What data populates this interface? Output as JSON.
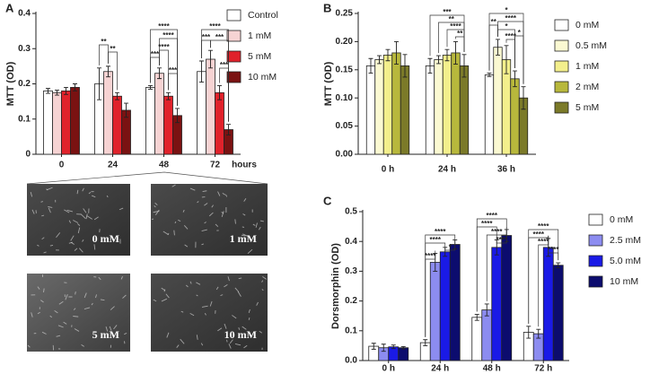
{
  "chart_data": [
    {
      "type": "bar",
      "panel": "A",
      "ylabel": "MTT (OD)",
      "xlabel": "hours",
      "categories": [
        "0",
        "24",
        "48",
        "72"
      ],
      "series": [
        {
          "name": "Control",
          "color": "#ffffff",
          "values": [
            0.18,
            0.2,
            0.19,
            0.235
          ],
          "errors": [
            0.007,
            0.045,
            0.005,
            0.03
          ]
        },
        {
          "name": "1 mM",
          "color": "#f6d3d3",
          "values": [
            0.175,
            0.235,
            0.23,
            0.27
          ],
          "errors": [
            0.007,
            0.015,
            0.015,
            0.025
          ]
        },
        {
          "name": "5 mM",
          "color": "#e0222b",
          "values": [
            0.18,
            0.165,
            0.165,
            0.175
          ],
          "errors": [
            0.01,
            0.01,
            0.01,
            0.02
          ]
        },
        {
          "name": "10 mM",
          "color": "#7a1212",
          "values": [
            0.19,
            0.125,
            0.11,
            0.07
          ],
          "errors": [
            0.01,
            0.02,
            0.02,
            0.015
          ]
        }
      ],
      "ylim": [
        0,
        0.4
      ],
      "yticks": [
        0,
        0.1,
        0.2,
        0.3,
        0.4
      ],
      "annotations": [
        "**",
        "**",
        "****",
        "****",
        "***",
        "****",
        "***",
        "****",
        "***",
        "***",
        "***"
      ]
    },
    {
      "type": "bar",
      "panel": "B",
      "ylabel": "MTT (OD)",
      "categories": [
        "0 h",
        "24 h",
        "36 h"
      ],
      "series": [
        {
          "name": "0 mM",
          "color": "#ffffff",
          "values": [
            0.157,
            0.157,
            0.141
          ],
          "errors": [
            0.013,
            0.013,
            0.003
          ]
        },
        {
          "name": "0.5 mM",
          "color": "#fbf9d2",
          "values": [
            0.168,
            0.168,
            0.19
          ],
          "errors": [
            0.007,
            0.007,
            0.014
          ]
        },
        {
          "name": "1 mM",
          "color": "#f3ef8c",
          "values": [
            0.176,
            0.176,
            0.168
          ],
          "errors": [
            0.01,
            0.01,
            0.025
          ]
        },
        {
          "name": "2 mM",
          "color": "#b8b83c",
          "values": [
            0.18,
            0.18,
            0.134
          ],
          "errors": [
            0.02,
            0.02,
            0.014
          ]
        },
        {
          "name": "5 mM",
          "color": "#7b7a29",
          "values": [
            0.157,
            0.157,
            0.1
          ],
          "errors": [
            0.02,
            0.02,
            0.02
          ]
        }
      ],
      "ylim": [
        0,
        0.25
      ],
      "yticks": [
        {
          "value": 0,
          "label": "0.00"
        },
        {
          "value": 0.05,
          "label": "0.05"
        },
        {
          "value": 0.1,
          "label": "0.10"
        },
        {
          "value": 0.15,
          "label": "0.15"
        },
        {
          "value": 0.2,
          "label": "0.20"
        },
        {
          "value": 0.25,
          "label": "0.25"
        }
      ],
      "annotations": [
        "***",
        "**",
        "****",
        "**",
        "*",
        "**",
        "****",
        "*",
        "****",
        "*"
      ]
    },
    {
      "type": "bar",
      "panel": "C",
      "ylabel": "Dorsmorphin (OD)",
      "categories": [
        "0 h",
        "24 h",
        "48 h",
        "72 h"
      ],
      "series": [
        {
          "name": "0 mM",
          "color": "#ffffff",
          "values": [
            0.048,
            0.06,
            0.145,
            0.095
          ],
          "errors": [
            0.01,
            0.01,
            0.01,
            0.02
          ]
        },
        {
          "name": "2.5 mM",
          "color": "#8c8cf0",
          "values": [
            0.043,
            0.33,
            0.17,
            0.09
          ],
          "errors": [
            0.012,
            0.03,
            0.02,
            0.015
          ]
        },
        {
          "name": "5.0 mM",
          "color": "#1a1ae6",
          "values": [
            0.046,
            0.365,
            0.38,
            0.38
          ],
          "errors": [
            0.006,
            0.015,
            0.025,
            0.03
          ]
        },
        {
          "name": "10 mM",
          "color": "#0c0c6e",
          "values": [
            0.043,
            0.39,
            0.42,
            0.32
          ],
          "errors": [
            0.004,
            0.015,
            0.02,
            0.008
          ]
        }
      ],
      "ylim": [
        0,
        0.5
      ],
      "yticks": [
        {
          "value": 0,
          "label": "0.0"
        },
        {
          "value": 0.1,
          "label": "0.1"
        },
        {
          "value": 0.2,
          "label": "0.2"
        },
        {
          "value": 0.3,
          "label": "0.3"
        },
        {
          "value": 0.4,
          "label": "0.4"
        },
        {
          "value": 0.5,
          "label": "0.5"
        }
      ],
      "annotations": [
        "****",
        "****",
        "*",
        "****",
        "****",
        "****",
        "****",
        "****",
        "****",
        "****",
        "****",
        "****"
      ]
    }
  ],
  "images": [
    {
      "label": "0 mM"
    },
    {
      "label": "1 mM"
    },
    {
      "label": "5 mM"
    },
    {
      "label": "10 mM"
    }
  ]
}
